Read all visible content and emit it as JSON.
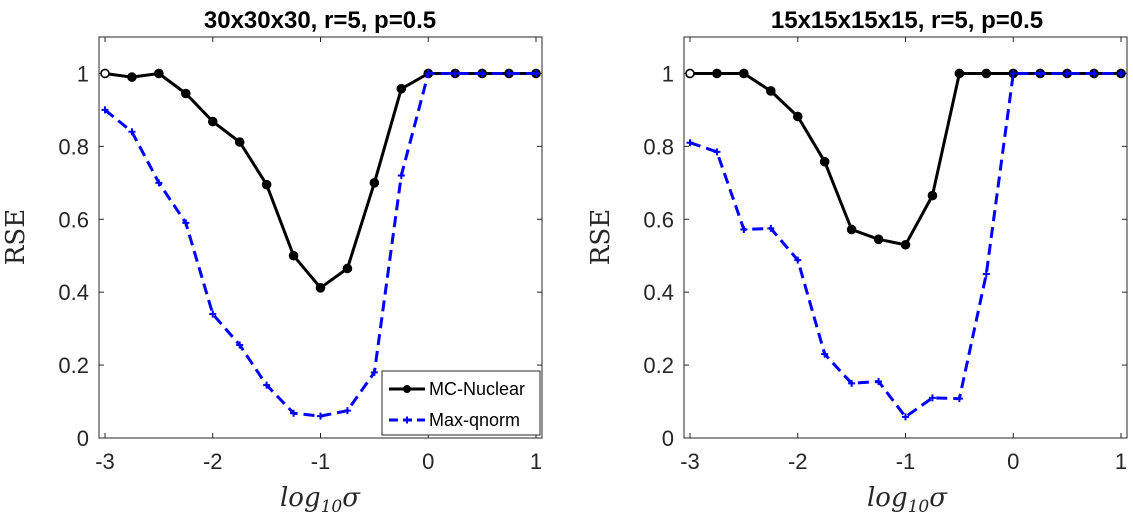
{
  "chart_data": [
    {
      "type": "line",
      "title": "30x30x30, r=5, p=0.5",
      "xlabel": "log10σ",
      "ylabel": "RSE",
      "xlim": [
        -3,
        1
      ],
      "ylim": [
        0,
        1.1
      ],
      "xticks": [
        "-3",
        "-2",
        "-1",
        "0",
        "1"
      ],
      "yticks": [
        "0",
        "0.2",
        "0.4",
        "0.6",
        "0.8",
        "1"
      ],
      "x": [
        -3,
        -2.75,
        -2.5,
        -2.25,
        -2,
        -1.75,
        -1.5,
        -1.25,
        -1,
        -0.75,
        -0.5,
        -0.25,
        0,
        0.25,
        0.5,
        0.75,
        1
      ],
      "series": [
        {
          "name": "MC-Nuclear",
          "color": "#000000",
          "values": [
            1.0,
            0.99,
            1.0,
            0.945,
            0.868,
            0.812,
            0.695,
            0.5,
            0.412,
            0.465,
            0.7,
            0.958,
            1.0,
            1.0,
            1.0,
            1.0,
            1.0
          ]
        },
        {
          "name": "Max-qnorm",
          "color": "#0000ff",
          "values": [
            0.9,
            0.84,
            0.7,
            0.59,
            0.34,
            0.255,
            0.145,
            0.068,
            0.06,
            0.075,
            0.18,
            0.72,
            1.0,
            1.0,
            1.0,
            1.0,
            1.0
          ]
        }
      ],
      "grid": false,
      "legend": {
        "position": "bottom-right",
        "entries": [
          "MC-Nuclear",
          "Max-qnorm"
        ]
      }
    },
    {
      "type": "line",
      "title": "15x15x15x15, r=5, p=0.5",
      "xlabel": "log10σ",
      "ylabel": "RSE",
      "xlim": [
        -3,
        1
      ],
      "ylim": [
        0,
        1.1
      ],
      "xticks": [
        "-3",
        "-2",
        "-1",
        "0",
        "1"
      ],
      "yticks": [
        "0",
        "0.2",
        "0.4",
        "0.6",
        "0.8",
        "1"
      ],
      "x": [
        -3,
        -2.75,
        -2.5,
        -2.25,
        -2,
        -1.75,
        -1.5,
        -1.25,
        -1,
        -0.75,
        -0.5,
        -0.25,
        0,
        0.25,
        0.5,
        0.75,
        1
      ],
      "series": [
        {
          "name": "MC-Nuclear",
          "color": "#000000",
          "values": [
            1.0,
            1.0,
            1.0,
            0.952,
            0.882,
            0.758,
            0.572,
            0.545,
            0.53,
            0.665,
            1.0,
            1.0,
            1.0,
            1.0,
            1.0,
            1.0,
            1.0
          ]
        },
        {
          "name": "Max-qnorm",
          "color": "#0000ff",
          "values": [
            0.81,
            0.785,
            0.572,
            0.575,
            0.488,
            0.23,
            0.15,
            0.155,
            0.058,
            0.11,
            0.108,
            0.45,
            1.0,
            1.0,
            1.0,
            1.0,
            1.0
          ]
        }
      ],
      "grid": false
    }
  ]
}
